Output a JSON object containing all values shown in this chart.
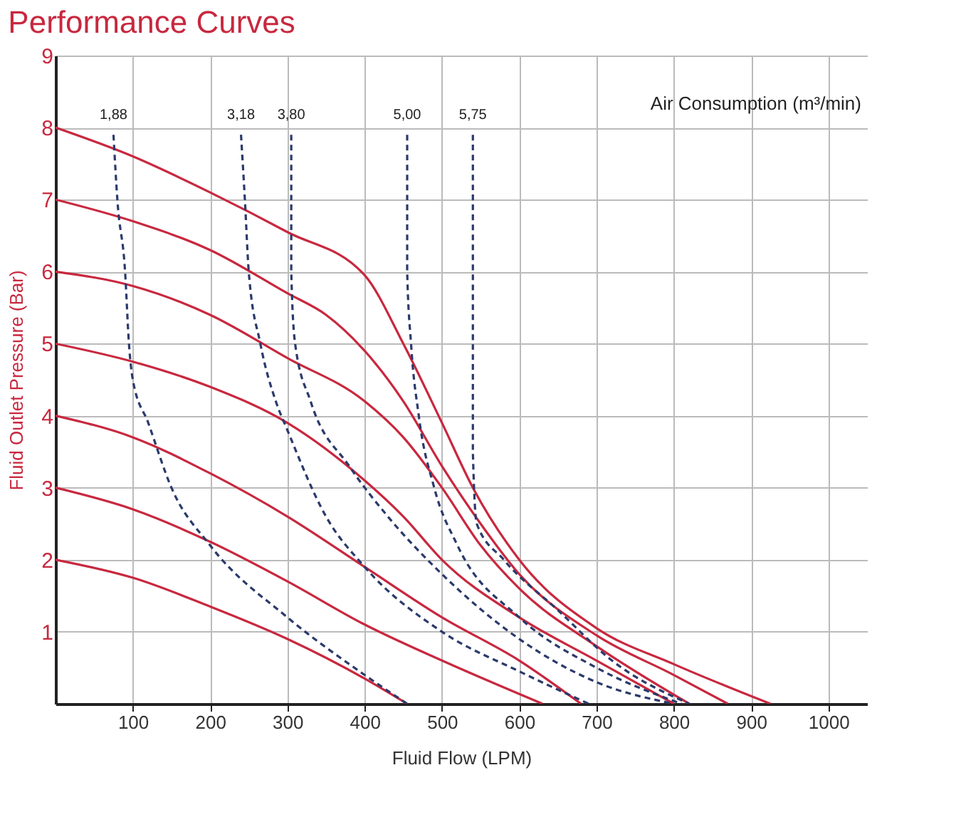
{
  "chart_data": {
    "type": "line",
    "title": "Performance Curves",
    "xlabel": "Fluid Flow (LPM)",
    "ylabel": "Fluid Outlet Pressure (Bar)",
    "annotations": [
      "Air Consumption (m³/min)"
    ],
    "xlim": [
      0,
      1050
    ],
    "xticks": [
      100,
      200,
      300,
      400,
      500,
      600,
      700,
      800,
      900,
      1000
    ],
    "ylim": [
      0,
      9
    ],
    "yticks": [
      1,
      2,
      3,
      4,
      5,
      6,
      7,
      8,
      9
    ],
    "grid": true,
    "series": [
      {
        "color": "#c8283f",
        "line_style": "solid",
        "x": [
          0,
          100,
          200,
          300,
          400,
          450,
          500,
          540,
          600,
          700,
          800,
          925
        ],
        "values": [
          8,
          7.6,
          7.1,
          6.55,
          5.95,
          5.0,
          3.9,
          3.0,
          2.0,
          1.05,
          0.55,
          0
        ]
      },
      {
        "color": "#c8283f",
        "line_style": "solid",
        "x": [
          0,
          100,
          200,
          300,
          350,
          400,
          450,
          500,
          550,
          600,
          700,
          800,
          870
        ],
        "values": [
          7,
          6.7,
          6.3,
          5.7,
          5.4,
          4.9,
          4.2,
          3.3,
          2.5,
          1.8,
          0.95,
          0.4,
          0
        ]
      },
      {
        "color": "#c8283f",
        "line_style": "solid",
        "x": [
          0,
          100,
          200,
          300,
          400,
          450,
          500,
          550,
          600,
          700,
          820
        ],
        "values": [
          6,
          5.8,
          5.4,
          4.8,
          4.2,
          3.7,
          3.0,
          2.2,
          1.6,
          0.8,
          0
        ]
      },
      {
        "color": "#c8283f",
        "line_style": "solid",
        "x": [
          0,
          100,
          200,
          300,
          400,
          450,
          500,
          600,
          700,
          800
        ],
        "values": [
          5,
          4.75,
          4.4,
          3.9,
          3.1,
          2.6,
          2.0,
          1.2,
          0.6,
          0
        ]
      },
      {
        "color": "#c8283f",
        "line_style": "solid",
        "x": [
          0,
          100,
          200,
          300,
          400,
          500,
          600,
          680
        ],
        "values": [
          4,
          3.7,
          3.2,
          2.6,
          1.9,
          1.2,
          0.6,
          0
        ]
      },
      {
        "color": "#c8283f",
        "line_style": "solid",
        "x": [
          0,
          100,
          200,
          300,
          400,
          500,
          630
        ],
        "values": [
          3,
          2.7,
          2.25,
          1.7,
          1.1,
          0.6,
          0
        ]
      },
      {
        "color": "#c8283f",
        "line_style": "solid",
        "x": [
          0,
          100,
          200,
          300,
          400,
          455
        ],
        "values": [
          2,
          1.75,
          1.35,
          0.9,
          0.35,
          0
        ]
      },
      {
        "name": "1,88",
        "color": "#2b3a6b",
        "line_style": "dashed",
        "x": [
          75,
          80,
          90,
          95,
          100,
          120,
          150,
          200,
          300,
          400,
          455
        ],
        "values": [
          7.9,
          7,
          6,
          5,
          4.5,
          3.9,
          3.0,
          2.2,
          1.2,
          0.4,
          0
        ]
      },
      {
        "name": "3,18",
        "color": "#2b3a6b",
        "line_style": "dashed",
        "x": [
          240,
          245,
          250,
          265,
          285,
          300,
          350,
          400,
          500,
          600,
          690
        ],
        "values": [
          7.9,
          7,
          6,
          5,
          4.2,
          3.8,
          2.6,
          1.9,
          1.0,
          0.45,
          0
        ]
      },
      {
        "name": "3,80",
        "color": "#2b3a6b",
        "line_style": "dashed",
        "x": [
          305,
          305,
          305,
          310,
          330,
          380,
          430,
          500,
          600,
          700,
          800
        ],
        "values": [
          7.9,
          7,
          6,
          5,
          4.2,
          3.3,
          2.6,
          1.8,
          0.9,
          0.3,
          0
        ]
      },
      {
        "name": "5,00",
        "color": "#2b3a6b",
        "line_style": "dashed",
        "x": [
          455,
          455,
          455,
          460,
          470,
          490,
          520,
          600,
          700,
          810
        ],
        "values": [
          7.9,
          7,
          6,
          5,
          4,
          3,
          2.2,
          1.2,
          0.5,
          0
        ]
      },
      {
        "name": "5,75",
        "color": "#2b3a6b",
        "line_style": "dashed",
        "x": [
          540,
          540,
          540,
          545,
          580,
          650,
          720,
          820
        ],
        "values": [
          7.9,
          5,
          3.5,
          2.5,
          2.0,
          1.3,
          0.6,
          0
        ]
      }
    ]
  }
}
